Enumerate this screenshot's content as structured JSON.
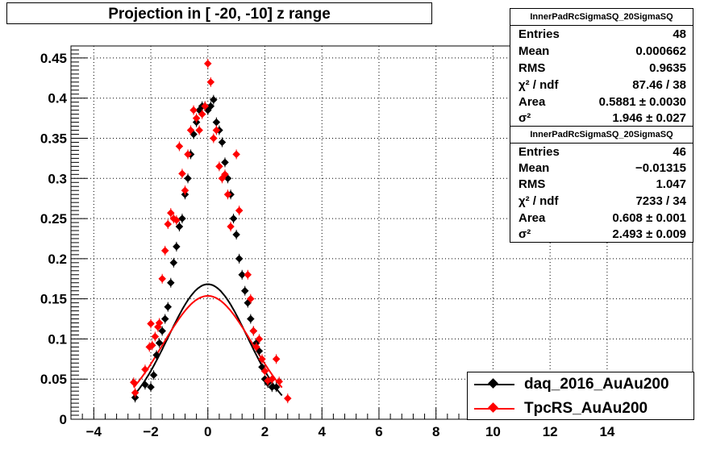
{
  "title": "Projection in [ -20, -10] z range",
  "stats_boxes": [
    {
      "header": "InnerPadRcSigmaSQ_20SigmaSQ",
      "rows": [
        {
          "key": "Entries",
          "value": "48"
        },
        {
          "key": "Mean",
          "value": "0.000662"
        },
        {
          "key": "RMS",
          "value": "0.9635"
        },
        {
          "key": "χ² / ndf",
          "value": "87.46 / 38"
        },
        {
          "key": "Area",
          "value": "0.5881 ± 0.0030"
        },
        {
          "key": "σ²",
          "value": "1.946 ± 0.027"
        }
      ]
    },
    {
      "header": "InnerPadRcSigmaSQ_20SigmaSQ",
      "rows": [
        {
          "key": "Entries",
          "value": "46"
        },
        {
          "key": "Mean",
          "value": "−0.01315"
        },
        {
          "key": "RMS",
          "value": "1.047"
        },
        {
          "key": "χ² / ndf",
          "value": "7233 / 34"
        },
        {
          "key": "Area",
          "value": "0.608 ± 0.001"
        },
        {
          "key": "σ²",
          "value": "2.493 ± 0.009"
        }
      ]
    }
  ],
  "legend": [
    {
      "label": "daq_2016_AuAu200",
      "color": "#000000"
    },
    {
      "label": "TpcRS_AuAu200",
      "color": "#ff0000"
    }
  ],
  "chart_data": {
    "type": "scatter",
    "title": "Projection in [ -20, -10] z range",
    "xlabel": "",
    "ylabel": "",
    "xlim": [
      -4.8,
      17
    ],
    "ylim": [
      0,
      0.465
    ],
    "x_ticks": [
      -4,
      -2,
      0,
      2,
      4,
      6,
      8,
      10,
      12,
      14
    ],
    "x_tick_labels": [
      "−4",
      "−2",
      "0",
      "2",
      "4",
      "6",
      "8",
      "10",
      "12",
      "14"
    ],
    "y_ticks": [
      0,
      0.05,
      0.1,
      0.15,
      0.2,
      0.25,
      0.3,
      0.35,
      0.4,
      0.45
    ],
    "y_tick_labels": [
      "0",
      "0.05",
      "0.1",
      "0.15",
      "0.2",
      "0.25",
      "0.3",
      "0.35",
      "0.4",
      "0.45"
    ],
    "grid": true,
    "legend_position": "bottom-right",
    "series": [
      {
        "name": "daq_2016_AuAu200",
        "color": "#000000",
        "x": [
          -2.55,
          -2.2,
          -2.0,
          -1.9,
          -1.8,
          -1.7,
          -1.6,
          -1.5,
          -1.4,
          -1.3,
          -1.2,
          -1.1,
          -1.0,
          -0.9,
          -0.8,
          -0.7,
          -0.6,
          -0.5,
          -0.4,
          -0.3,
          -0.2,
          -0.1,
          0.0,
          0.1,
          0.2,
          0.3,
          0.4,
          0.5,
          0.6,
          0.7,
          0.8,
          0.9,
          1.0,
          1.1,
          1.2,
          1.3,
          1.4,
          1.5,
          1.6,
          1.7,
          1.8,
          1.9,
          2.0,
          2.1,
          2.25,
          2.4
        ],
        "y": [
          0.027,
          0.043,
          0.04,
          0.055,
          0.08,
          0.095,
          0.11,
          0.125,
          0.14,
          0.17,
          0.195,
          0.215,
          0.24,
          0.25,
          0.28,
          0.3,
          0.33,
          0.355,
          0.37,
          0.385,
          0.39,
          0.39,
          0.385,
          0.39,
          0.398,
          0.37,
          0.36,
          0.345,
          0.32,
          0.3,
          0.28,
          0.25,
          0.23,
          0.2,
          0.18,
          0.16,
          0.145,
          0.125,
          0.11,
          0.095,
          0.085,
          0.065,
          0.05,
          0.045,
          0.04,
          0.04
        ]
      },
      {
        "name": "TpcRS_AuAu200",
        "color": "#ff0000",
        "x": [
          -2.6,
          -2.55,
          -2.2,
          -2.05,
          -2.0,
          -1.95,
          -1.85,
          -1.75,
          -1.7,
          -1.6,
          -1.5,
          -1.4,
          -1.3,
          -1.2,
          -1.1,
          -1.0,
          -0.9,
          -0.8,
          -0.7,
          -0.6,
          -0.5,
          -0.4,
          -0.3,
          -0.2,
          -0.1,
          0.0,
          0.1,
          0.2,
          0.3,
          0.4,
          0.5,
          0.6,
          0.7,
          0.8,
          1.0,
          1.1,
          1.4,
          1.5,
          1.6,
          1.7,
          1.8,
          1.9,
          2.0,
          2.1,
          2.25,
          2.4,
          2.5,
          2.8
        ],
        "y": [
          0.046,
          0.033,
          0.062,
          0.09,
          0.119,
          0.092,
          0.103,
          0.115,
          0.12,
          0.175,
          0.21,
          0.243,
          0.257,
          0.25,
          0.248,
          0.34,
          0.306,
          0.285,
          0.33,
          0.36,
          0.385,
          0.375,
          0.36,
          0.38,
          0.39,
          0.443,
          0.42,
          0.35,
          0.36,
          0.315,
          0.3,
          0.305,
          0.28,
          0.24,
          0.33,
          0.26,
          0.18,
          0.15,
          0.11,
          0.09,
          0.1,
          0.075,
          0.06,
          0.048,
          0.05,
          0.075,
          0.047,
          0.026
        ]
      }
    ],
    "fits": [
      {
        "name": "daq_2016_AuAu200",
        "color": "#000000",
        "area": 0.5881,
        "sigma2": 1.946,
        "mean": 0
      },
      {
        "name": "TpcRS_AuAu200",
        "color": "#ff0000",
        "area": 0.608,
        "sigma2": 2.493,
        "mean": 0
      }
    ]
  }
}
